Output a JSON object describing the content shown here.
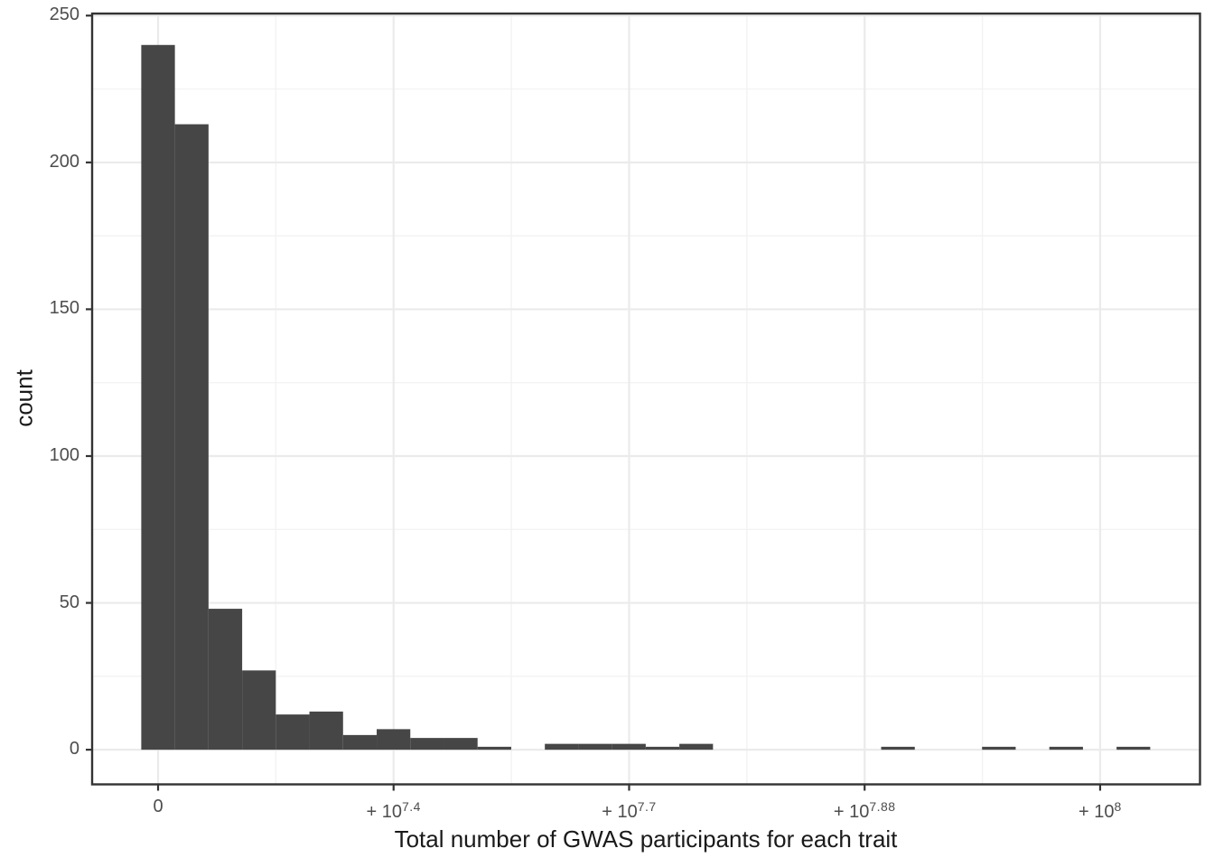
{
  "chart_data": {
    "type": "bar",
    "subtype": "histogram",
    "title": "",
    "xlabel": "Total number of GWAS participants for each trait",
    "ylabel": "count",
    "legend": "none",
    "grid": "major and minor gridlines, light grey on white panel, dark panel border",
    "x_axis_note": "linear scale in participants; breaks labeled in +10^exponent notation",
    "xlim_millions": [
      -7,
      110.6
    ],
    "ylim": [
      -11.8,
      250.7
    ],
    "x_ticks": [
      {
        "value_millions": 0,
        "label_main": "0",
        "label_sup": ""
      },
      {
        "value_millions": 25,
        "label_main": "+ 10",
        "label_sup": "7.4"
      },
      {
        "value_millions": 50,
        "label_main": "+ 10",
        "label_sup": "7.7"
      },
      {
        "value_millions": 75,
        "label_main": "+ 10",
        "label_sup": "7.88"
      },
      {
        "value_millions": 100,
        "label_main": "+ 10",
        "label_sup": "8"
      }
    ],
    "x_minor_ticks_millions": [
      12.5,
      37.5,
      62.5,
      87.5
    ],
    "y_ticks": [
      0,
      50,
      100,
      150,
      200,
      250
    ],
    "y_minor_ticks": [
      25,
      75,
      125,
      175,
      225
    ],
    "bins": {
      "start_millions": -1.785,
      "width_millions": 3.57,
      "counts": [
        240,
        213,
        48,
        27,
        12,
        13,
        5,
        7,
        4,
        4,
        1,
        0,
        2,
        2,
        2,
        1,
        2,
        0,
        0,
        0,
        0,
        0,
        1,
        0,
        0,
        1,
        0,
        1,
        0,
        1
      ]
    },
    "colors": {
      "bar_fill": "#464646",
      "panel_border": "#333333",
      "grid_major": "#ebebeb",
      "grid_minor": "#f3f3f3",
      "tick_mark": "#333333",
      "tick_label": "#4d4d4d",
      "axis_title": "#1a1a1a",
      "background": "#ffffff"
    }
  }
}
